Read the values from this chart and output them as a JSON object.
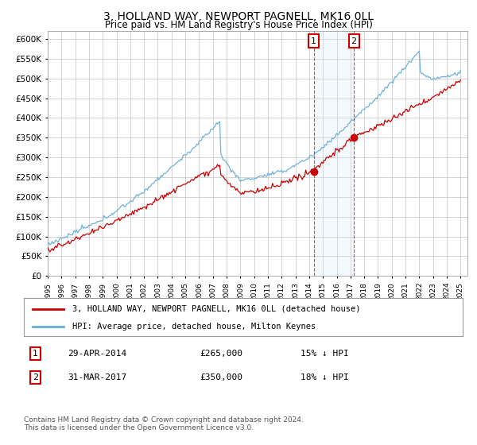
{
  "title": "3, HOLLAND WAY, NEWPORT PAGNELL, MK16 0LL",
  "subtitle": "Price paid vs. HM Land Registry's House Price Index (HPI)",
  "legend_line1": "3, HOLLAND WAY, NEWPORT PAGNELL, MK16 0LL (detached house)",
  "legend_line2": "HPI: Average price, detached house, Milton Keynes",
  "purchase1_date": "29-APR-2014",
  "purchase1_price": 265000,
  "purchase1_year": 2014.33,
  "purchase1_label": "15% ↓ HPI",
  "purchase2_date": "31-MAR-2017",
  "purchase2_price": 350000,
  "purchase2_year": 2017.25,
  "purchase2_label": "18% ↓ HPI",
  "footer": "Contains HM Land Registry data © Crown copyright and database right 2024.\nThis data is licensed under the Open Government Licence v3.0.",
  "hpi_color": "#6baed6",
  "price_color": "#cc0000",
  "span_color": "#d0e8f5",
  "background_color": "#ffffff",
  "grid_color": "#cccccc",
  "ylim": [
    0,
    620000
  ],
  "yticks": [
    0,
    50000,
    100000,
    150000,
    200000,
    250000,
    300000,
    350000,
    400000,
    450000,
    500000,
    550000,
    600000
  ],
  "xlim_start": 1995,
  "xlim_end": 2025.5
}
